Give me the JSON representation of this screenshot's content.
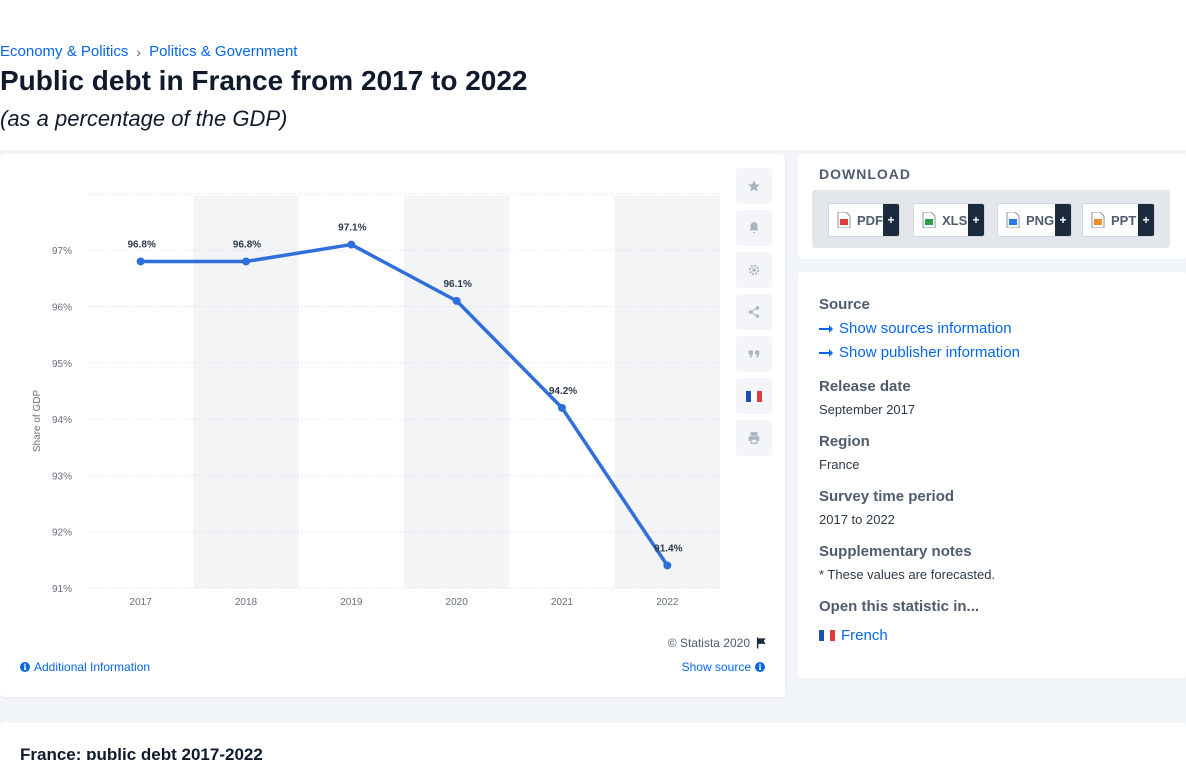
{
  "breadcrumb": {
    "item1": "Economy & Politics",
    "separator": "›",
    "item2": "Politics & Government"
  },
  "page": {
    "title": "Public debt in France from 2017 to 2022",
    "subtitle": "(as a percentage of the GDP)"
  },
  "chart_data": {
    "type": "line",
    "categories": [
      "2017",
      "2018",
      "2019",
      "2020",
      "2021",
      "2022"
    ],
    "series": [
      {
        "values": [
          96.8,
          96.8,
          97.1,
          96.1,
          94.2,
          91.4
        ]
      }
    ],
    "data_labels": [
      "96.8%",
      "96.8%",
      "97.1%",
      "96.1%",
      "94.2%",
      "91.4%"
    ],
    "ylabel": "Share of GDP",
    "xlabel": "",
    "ylim": [
      91,
      98
    ],
    "yticks": [
      91,
      92,
      93,
      94,
      95,
      96,
      97
    ],
    "ytick_labels": [
      "91%",
      "92%",
      "93%",
      "94%",
      "95%",
      "96%",
      "97%"
    ],
    "grid": true,
    "alternating_column_bands": true,
    "line_color": "#2e6fdc"
  },
  "chart_footer": {
    "copyright": "© Statista 2020",
    "additional_info": "Additional Information",
    "show_source": "Show source"
  },
  "toolbar": {
    "icons": [
      "star-icon",
      "bell-icon",
      "gear-icon",
      "share-icon",
      "quote-icon",
      "french-flag-icon",
      "print-icon"
    ]
  },
  "download": {
    "title": "DOWNLOAD",
    "buttons": [
      {
        "label": "PDF",
        "plus": "+",
        "color": "#e03a3a"
      },
      {
        "label": "XLS",
        "plus": "+",
        "color": "#2f9e44"
      },
      {
        "label": "PNG",
        "plus": "+",
        "color": "#2c7be5"
      },
      {
        "label": "PPT",
        "plus": "+",
        "color": "#f08c28"
      }
    ]
  },
  "meta": {
    "source_heading": "Source",
    "show_sources": "Show sources information",
    "show_publisher": "Show publisher information",
    "release_heading": "Release date",
    "release_value": "September 2017",
    "region_heading": "Region",
    "region_value": "France",
    "period_heading": "Survey time period",
    "period_value": "2017 to 2022",
    "notes_heading": "Supplementary notes",
    "notes_value": "* These values are forecasted.",
    "open_heading": "Open this statistic in...",
    "open_language": "French"
  },
  "bottom": {
    "title": "France: public debt 2017-2022"
  },
  "colors": {
    "accent": "#0666e5",
    "flag_blue": "#1f4fb0",
    "flag_white": "#ffffff",
    "flag_red": "#e03a3a"
  }
}
